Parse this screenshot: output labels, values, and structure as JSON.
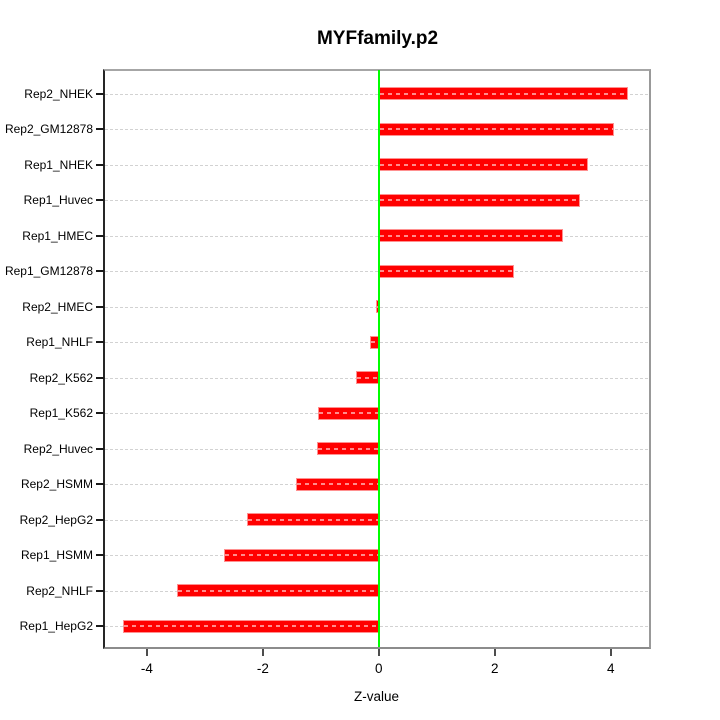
{
  "chart_data": {
    "type": "bar",
    "orientation": "horizontal",
    "title": "MYFfamily.p2",
    "xlabel": "Z-value",
    "categories": [
      "Rep2_NHEK",
      "Rep2_GM12878",
      "Rep1_NHEK",
      "Rep1_Huvec",
      "Rep1_HMEC",
      "Rep1_GM12878",
      "Rep2_HMEC",
      "Rep1_NHLF",
      "Rep2_K562",
      "Rep1_K562",
      "Rep2_Huvec",
      "Rep2_HSMM",
      "Rep2_HepG2",
      "Rep1_HSMM",
      "Rep2_NHLF",
      "Rep1_HepG2"
    ],
    "values": [
      4.29,
      4.05,
      3.6,
      3.47,
      3.17,
      2.33,
      -0.05,
      -0.15,
      -0.4,
      -1.05,
      -1.06,
      -1.43,
      -2.28,
      -2.67,
      -3.48,
      -4.42
    ],
    "xlim": [
      -4.74,
      4.66
    ],
    "xticks": [
      -4,
      -2,
      0,
      2,
      4
    ],
    "xtick_labels": [
      "-4",
      "-2",
      "0",
      "2",
      "4"
    ],
    "zero_line_value": 0,
    "grid": "dashed horizontal line per category, full plot width",
    "legend": null,
    "colors": {
      "bar_fill": "#ff0000",
      "bar_border": "#ff9090",
      "zero_line": "#00ff00",
      "gridline": "#d2d2d2",
      "box_border": "#999999",
      "text": "#000000",
      "background": "#ffffff"
    }
  }
}
